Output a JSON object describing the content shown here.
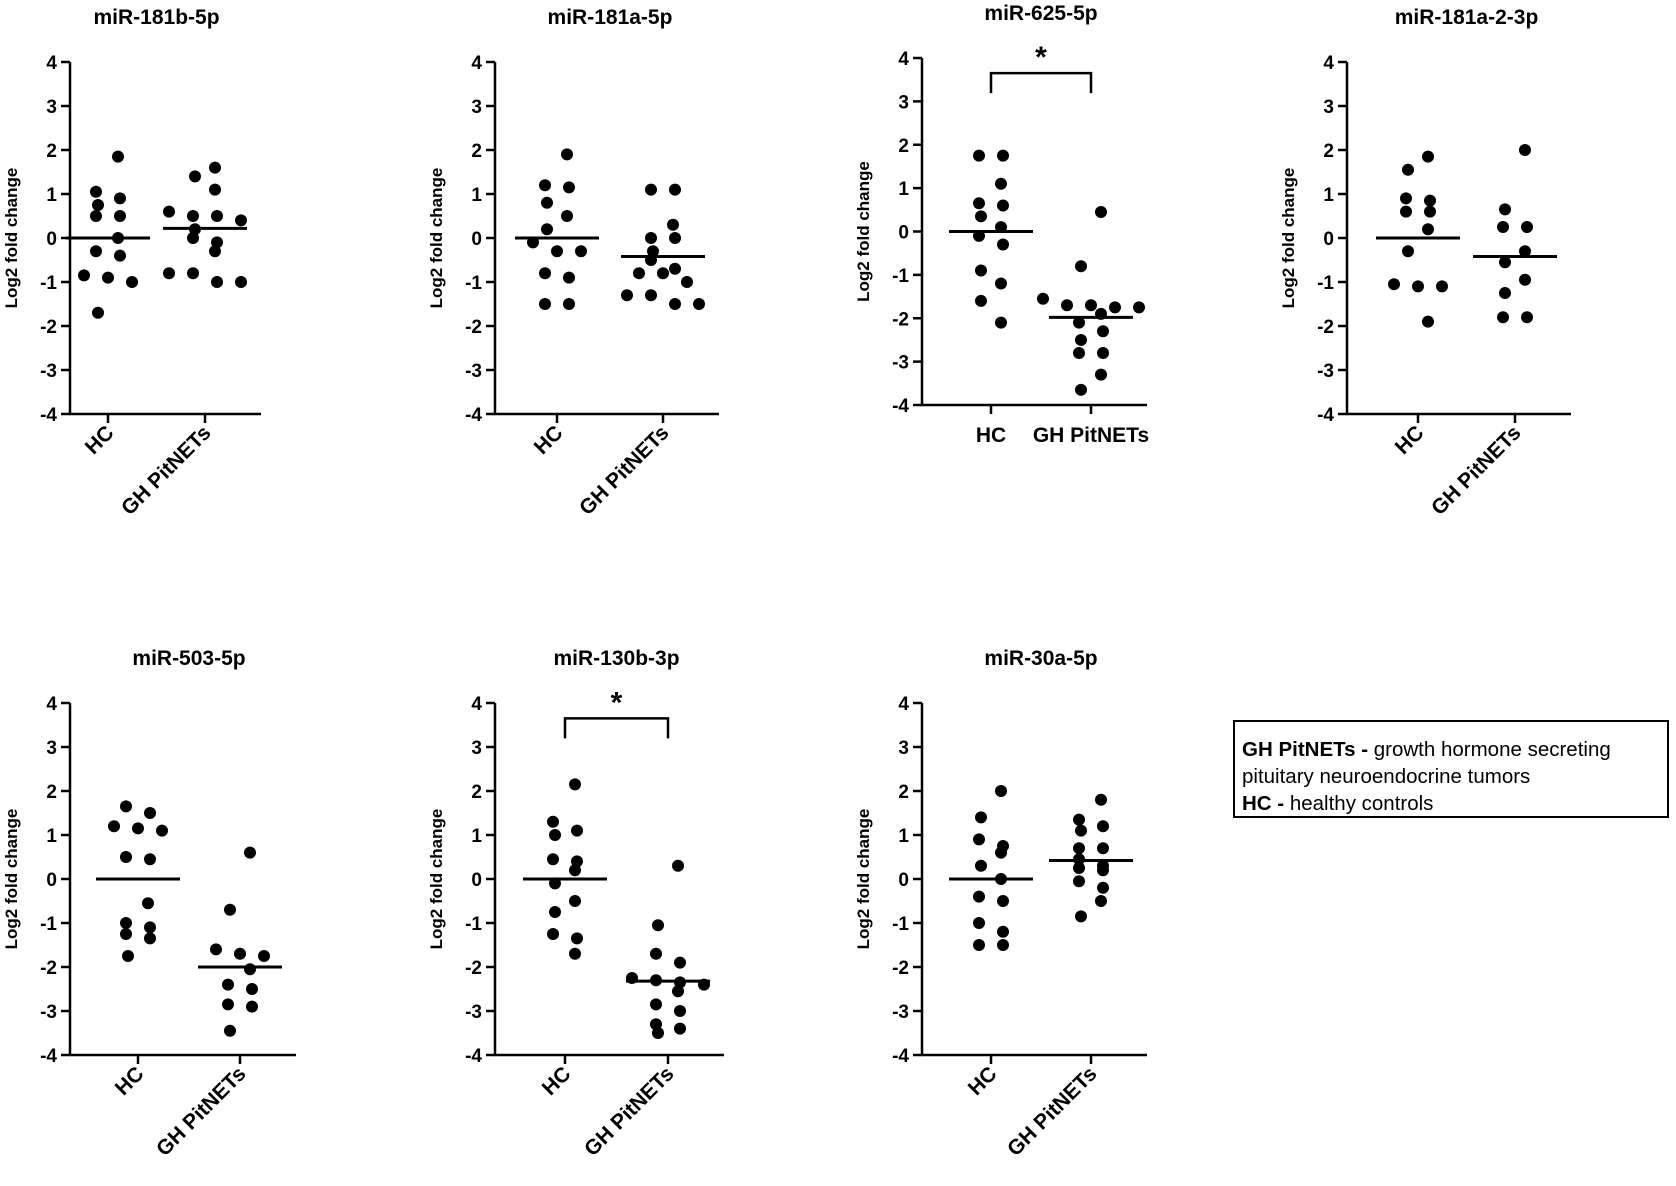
{
  "figure": {
    "y_axis_label": "Log2 fold change",
    "ylim": [
      -4,
      4
    ],
    "yticks": [
      4,
      3,
      2,
      1,
      0,
      -1,
      -2,
      -3,
      -4
    ]
  },
  "legend": {
    "row1_bold": "GH PitNETs -",
    "row1_text": "growth hormone secreting",
    "row2_text": "pituitary neuroendocrine tumors",
    "row3_bold": "HC -",
    "row3_text": "healthy controls"
  },
  "chart_data": [
    {
      "type": "scatter",
      "title": "miR-181b-5p",
      "xlabel_rotated": true,
      "categories": [
        "HC",
        "GH PitNETs"
      ],
      "ylabel": "Log2 fold change",
      "ylim": [
        -4,
        4
      ],
      "series": [
        {
          "name": "HC",
          "mean": 0.0,
          "values": [
            1.85,
            1.05,
            0.9,
            0.75,
            0.5,
            0.5,
            0.0,
            -0.3,
            -0.4,
            -0.85,
            -0.9,
            -1.0,
            -1.7
          ]
        },
        {
          "name": "GH PitNETs",
          "mean": 0.22,
          "values": [
            1.6,
            1.4,
            1.1,
            0.6,
            0.5,
            0.5,
            0.4,
            0.2,
            0.0,
            -0.1,
            -0.3,
            -0.8,
            -0.8,
            -1.0,
            -1.0
          ]
        }
      ],
      "significance": null
    },
    {
      "type": "scatter",
      "title": "miR-181a-5p",
      "xlabel_rotated": true,
      "categories": [
        "HC",
        "GH PitNETs"
      ],
      "ylabel": "Log2 fold change",
      "ylim": [
        -4,
        4
      ],
      "series": [
        {
          "name": "HC",
          "mean": 0.0,
          "values": [
            1.9,
            1.2,
            1.15,
            0.8,
            0.5,
            0.2,
            -0.1,
            -0.3,
            -0.3,
            -0.8,
            -0.9,
            -1.5,
            -1.5
          ]
        },
        {
          "name": "GH PitNETs",
          "mean": -0.42,
          "values": [
            1.1,
            1.1,
            0.3,
            0.0,
            0.0,
            -0.3,
            -0.5,
            -0.7,
            -0.8,
            -0.8,
            -1.0,
            -1.3,
            -1.3,
            -1.5,
            -1.5
          ]
        }
      ],
      "significance": null
    },
    {
      "type": "scatter",
      "title": "miR-625-5p",
      "xlabel_rotated": false,
      "categories": [
        "HC",
        "GH PitNETs"
      ],
      "ylabel": "Log2 fold change",
      "ylim": [
        -4,
        4
      ],
      "series": [
        {
          "name": "HC",
          "mean": 0.0,
          "values": [
            1.75,
            1.75,
            1.1,
            0.65,
            0.6,
            0.35,
            0.1,
            -0.1,
            -0.3,
            -0.9,
            -1.2,
            -1.6,
            -2.1
          ]
        },
        {
          "name": "GH PitNETs",
          "mean": -1.98,
          "values": [
            0.45,
            -0.8,
            -1.55,
            -1.7,
            -1.7,
            -1.75,
            -1.75,
            -1.9,
            -2.1,
            -2.3,
            -2.5,
            -2.8,
            -2.8,
            -3.3,
            -3.65
          ]
        }
      ],
      "significance": "*"
    },
    {
      "type": "scatter",
      "title": "miR-181a-2-3p",
      "xlabel_rotated": true,
      "categories": [
        "HC",
        "GH PitNETs"
      ],
      "ylabel": "Log2 fold change",
      "ylim": [
        -4,
        4
      ],
      "series": [
        {
          "name": "HC",
          "mean": 0.0,
          "values": [
            1.85,
            1.55,
            0.9,
            0.85,
            0.6,
            0.6,
            0.2,
            -0.3,
            -1.05,
            -1.1,
            -1.1,
            -1.9
          ]
        },
        {
          "name": "GH PitNETs",
          "mean": -0.42,
          "values": [
            2.0,
            0.65,
            0.25,
            0.25,
            -0.3,
            -0.55,
            -0.95,
            -1.25,
            -1.8,
            -1.8
          ]
        }
      ],
      "significance": null
    },
    {
      "type": "scatter",
      "title": "miR-503-5p",
      "xlabel_rotated": true,
      "categories": [
        "HC",
        "GH PitNETs"
      ],
      "ylabel": "Log2 fold change",
      "ylim": [
        -4,
        4
      ],
      "series": [
        {
          "name": "HC",
          "mean": 0.0,
          "values": [
            1.65,
            1.5,
            1.2,
            1.15,
            1.1,
            0.5,
            0.45,
            -0.55,
            -1.0,
            -1.1,
            -1.25,
            -1.35,
            -1.75
          ]
        },
        {
          "name": "GH PitNETs",
          "mean": -2.0,
          "values": [
            0.6,
            -0.7,
            -1.6,
            -1.7,
            -1.75,
            -2.05,
            -2.4,
            -2.5,
            -2.85,
            -2.9,
            -3.45
          ]
        }
      ],
      "significance": null
    },
    {
      "type": "scatter",
      "title": "miR-130b-3p",
      "xlabel_rotated": true,
      "categories": [
        "HC",
        "GH PitNETs"
      ],
      "ylabel": "Log2 fold change",
      "ylim": [
        -4,
        4
      ],
      "series": [
        {
          "name": "HC",
          "mean": 0.0,
          "values": [
            2.15,
            1.3,
            1.1,
            1.0,
            0.45,
            0.4,
            0.2,
            -0.1,
            -0.5,
            -0.75,
            -1.25,
            -1.35,
            -1.7
          ]
        },
        {
          "name": "GH PitNETs",
          "mean": -2.32,
          "values": [
            0.3,
            -1.05,
            -1.7,
            -1.9,
            -2.25,
            -2.3,
            -2.35,
            -2.4,
            -2.55,
            -2.85,
            -3.0,
            -3.3,
            -3.4,
            -3.5
          ]
        }
      ],
      "significance": "*"
    },
    {
      "type": "scatter",
      "title": "miR-30a-5p",
      "xlabel_rotated": true,
      "categories": [
        "HC",
        "GH PitNETs"
      ],
      "ylabel": "Log2 fold change",
      "ylim": [
        -4,
        4
      ],
      "series": [
        {
          "name": "HC",
          "mean": 0.0,
          "values": [
            2.0,
            1.4,
            0.9,
            0.75,
            0.6,
            0.3,
            0.0,
            -0.4,
            -0.5,
            -1.0,
            -1.2,
            -1.5,
            -1.5
          ]
        },
        {
          "name": "GH PitNETs",
          "mean": 0.42,
          "values": [
            1.8,
            1.35,
            1.2,
            1.1,
            0.7,
            0.7,
            0.45,
            0.3,
            0.25,
            0.2,
            -0.05,
            -0.2,
            -0.5,
            -0.85
          ]
        }
      ],
      "significance": null
    }
  ]
}
